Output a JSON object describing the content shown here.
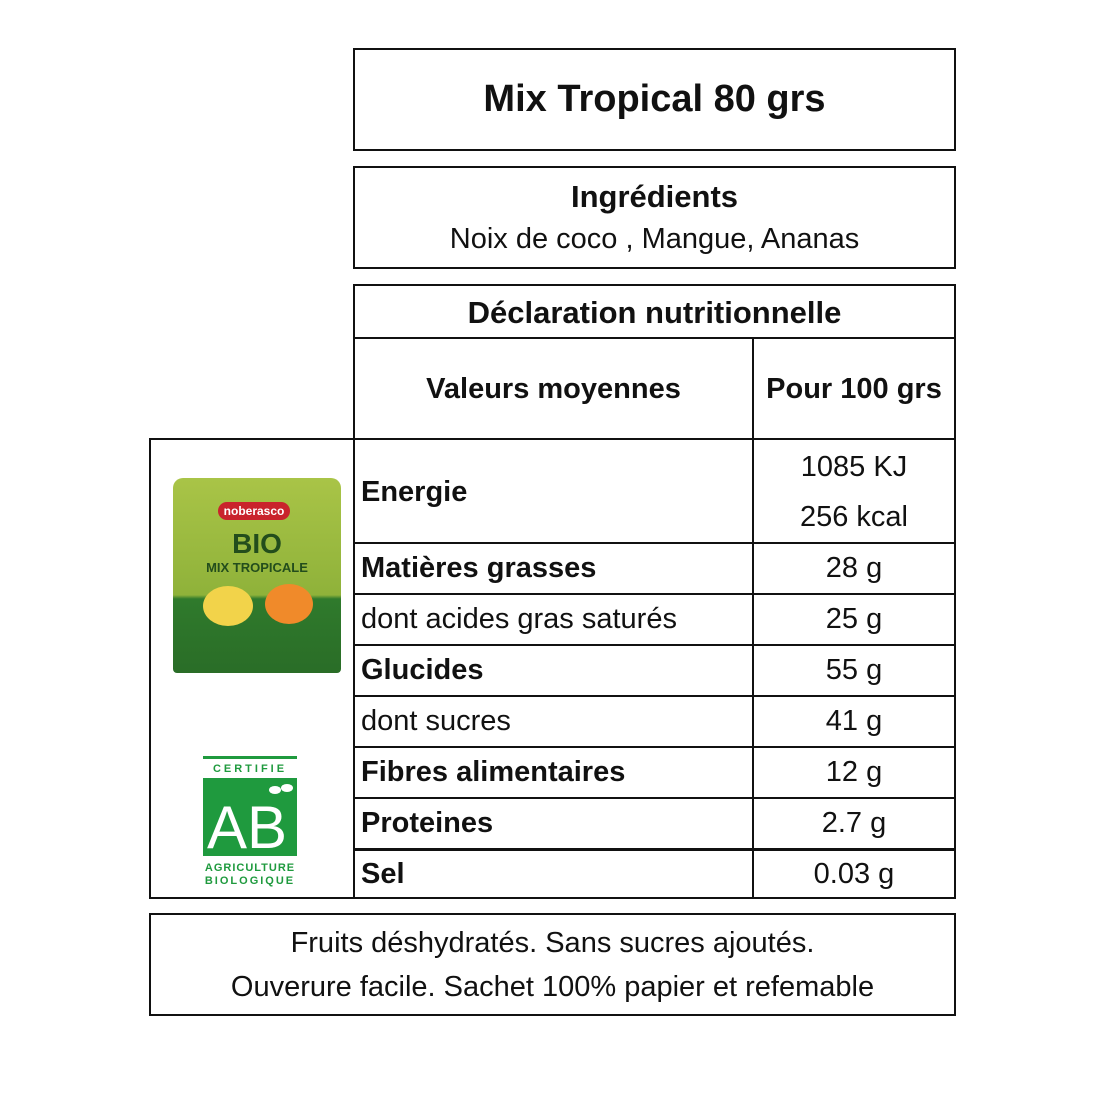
{
  "title": "Mix Tropical 80 grs",
  "ingredients": {
    "heading": "Ingrédients",
    "text": "Noix de coco , Mangue, Ananas"
  },
  "nutrition": {
    "heading": "Déclaration nutritionnelle",
    "col_label": "Valeurs moyennes",
    "col_value": "Pour 100 grs",
    "energy": {
      "label": "Energie",
      "kj": "1085 KJ",
      "kcal": "256  kcal"
    },
    "rows": [
      {
        "label": "Matières grasses",
        "value": "28 g",
        "bold": true
      },
      {
        "label": "dont acides gras saturés",
        "value": "25 g",
        "bold": false
      },
      {
        "label": "Glucides",
        "value": "55 g",
        "bold": true
      },
      {
        "label": "dont sucres",
        "value": "41 g",
        "bold": false
      },
      {
        "label": "Fibres alimentaires",
        "value": "12 g",
        "bold": true
      },
      {
        "label": "Proteines",
        "value": "2.7 g",
        "bold": true
      },
      {
        "label": "Sel",
        "value": "0.03 g",
        "bold": true
      }
    ]
  },
  "product_image": {
    "brand": "noberasco",
    "line1": "BIO",
    "line2": "MIX TROPICALE",
    "color": "#8fb23a"
  },
  "ab_logo": {
    "top": "CERTIFIE",
    "mark": "AB",
    "bottom1": "AGRICULTURE",
    "bottom2": "BIOLOGIQUE",
    "color": "#1f9a3e"
  },
  "footer": {
    "line1": "Fruits déshydratés. Sans sucres ajoutés.",
    "line2": "Ouverure facile. Sachet 100% papier et refemable"
  }
}
